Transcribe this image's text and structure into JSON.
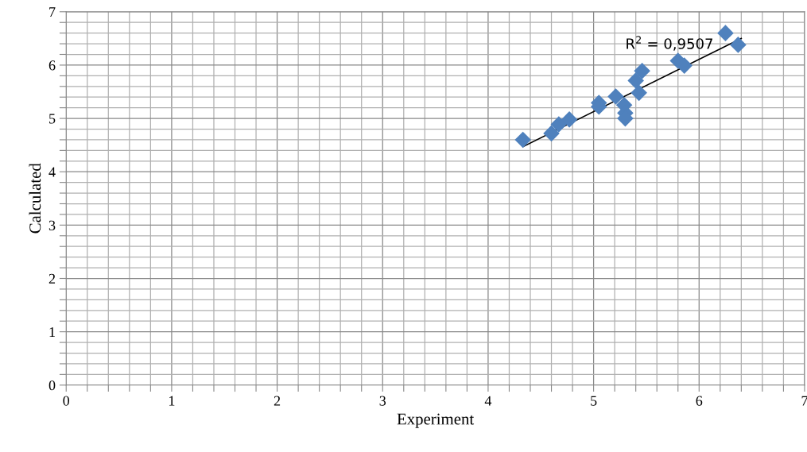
{
  "chart_data": {
    "type": "scatter",
    "xlabel": "Experiment",
    "ylabel": "Calculated",
    "series": [
      {
        "color": "#4f81bd",
        "marker": "diamond",
        "x": [
          4.33,
          4.6,
          4.67,
          4.77,
          5.05,
          5.05,
          5.21,
          5.29,
          5.3,
          5.3,
          5.4,
          5.46,
          5.43,
          5.8,
          5.86,
          6.25,
          6.37
        ],
        "values": [
          4.6,
          4.72,
          4.89,
          4.98,
          5.29,
          5.22,
          5.41,
          5.25,
          5.1,
          5.0,
          5.71,
          5.89,
          5.48,
          6.08,
          5.99,
          6.6,
          6.38
        ]
      },
      {
        "type": "line",
        "color": "#000000",
        "marker": "none",
        "x": [
          4.33,
          6.4
        ],
        "values": [
          4.47,
          6.5
        ]
      }
    ],
    "annotations": [
      "R$^{2}$ = 0,9507"
    ],
    "xlim": [
      0,
      7
    ],
    "ylim": [
      0,
      7
    ],
    "xticks": [
      0,
      {
        "value": 0.2,
        "label": null
      },
      {
        "value": 0.4,
        "label": null
      },
      {
        "value": 0.6,
        "label": null
      },
      {
        "value": 0.8,
        "label": null
      },
      1,
      {
        "value": 1.2,
        "label": null
      },
      {
        "value": 1.4,
        "label": null
      },
      {
        "value": 1.6,
        "label": null
      },
      {
        "value": 1.8,
        "label": null
      },
      2,
      {
        "value": 2.2,
        "label": null
      },
      {
        "value": 2.4,
        "label": null
      },
      {
        "value": 2.6,
        "label": null
      },
      {
        "value": 2.8,
        "label": null
      },
      3,
      {
        "value": 3.2,
        "label": null
      },
      {
        "value": 3.4,
        "label": null
      },
      {
        "value": 3.6,
        "label": null
      },
      {
        "value": 3.8,
        "label": null
      },
      4,
      {
        "value": 4.2,
        "label": null
      },
      {
        "value": 4.4,
        "label": null
      },
      {
        "value": 4.6,
        "label": null
      },
      {
        "value": 4.8,
        "label": null
      },
      5,
      {
        "value": 5.2,
        "label": null
      },
      {
        "value": 5.4,
        "label": null
      },
      {
        "value": 5.6,
        "label": null
      },
      {
        "value": 5.8,
        "label": null
      },
      6,
      {
        "value": 6.2,
        "label": null
      },
      {
        "value": 6.4,
        "label": null
      },
      {
        "value": 6.6,
        "label": null
      },
      {
        "value": 6.8,
        "label": null
      },
      7
    ],
    "yticks": [
      0,
      {
        "value": 0.2,
        "label": null
      },
      {
        "value": 0.4,
        "label": null
      },
      {
        "value": 0.6,
        "label": null
      },
      {
        "value": 0.8,
        "label": null
      },
      1,
      {
        "value": 1.2,
        "label": null
      },
      {
        "value": 1.4,
        "label": null
      },
      {
        "value": 1.6,
        "label": null
      },
      {
        "value": 1.8,
        "label": null
      },
      2,
      {
        "value": 2.2,
        "label": null
      },
      {
        "value": 2.4,
        "label": null
      },
      {
        "value": 2.6,
        "label": null
      },
      {
        "value": 2.8,
        "label": null
      },
      3,
      {
        "value": 3.2,
        "label": null
      },
      {
        "value": 3.4,
        "label": null
      },
      {
        "value": 3.6,
        "label": null
      },
      {
        "value": 3.8,
        "label": null
      },
      4,
      {
        "value": 4.2,
        "label": null
      },
      {
        "value": 4.4,
        "label": null
      },
      {
        "value": 4.6,
        "label": null
      },
      {
        "value": 4.8,
        "label": null
      },
      5,
      {
        "value": 5.2,
        "label": null
      },
      {
        "value": 5.4,
        "label": null
      },
      {
        "value": 5.6,
        "label": null
      },
      {
        "value": 5.8,
        "label": null
      },
      6,
      {
        "value": 6.2,
        "label": null
      },
      {
        "value": 6.4,
        "label": null
      },
      {
        "value": 6.6,
        "label": null
      },
      {
        "value": 6.8,
        "label": null
      },
      7
    ],
    "grid": true
  }
}
